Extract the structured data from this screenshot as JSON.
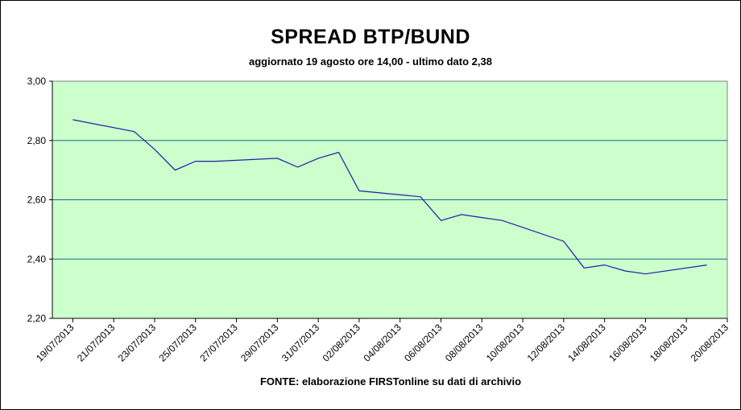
{
  "chart_data": {
    "type": "line",
    "title": "SPREAD BTP/BUND",
    "subtitle": "aggiornato 19 agosto ore 14,00 - ultimo dato 2,38",
    "source": "FONTE:  elaborazione FIRSTonline su dati di archivio",
    "xlabel": "",
    "ylabel": "",
    "ylim": [
      2.2,
      3.0
    ],
    "y_ticks": [
      "2,20",
      "2,40",
      "2,60",
      "2,80",
      "3,00"
    ],
    "x_ticks": [
      "19/07/2013",
      "21/07/2013",
      "23/07/2013",
      "25/07/2013",
      "27/07/2013",
      "29/07/2013",
      "31/07/2013",
      "02/08/2013",
      "04/08/2013",
      "06/08/2013",
      "08/08/2013",
      "10/08/2013",
      "12/08/2013",
      "14/08/2013",
      "16/08/2013",
      "18/08/2013",
      "20/08/2013"
    ],
    "grid": true,
    "legend": "none",
    "colors": {
      "plot_background": "#ccffcc",
      "line": "#1f1fa8",
      "gridline": "#1a6a8c"
    },
    "series": [
      {
        "x": [
          "2013-07-19",
          "2013-07-22",
          "2013-07-23",
          "2013-07-24",
          "2013-07-25",
          "2013-07-26",
          "2013-07-29",
          "2013-07-30",
          "2013-07-31",
          "2013-08-01",
          "2013-08-02",
          "2013-08-05",
          "2013-08-06",
          "2013-08-07",
          "2013-08-08",
          "2013-08-09",
          "2013-08-12",
          "2013-08-13",
          "2013-08-14",
          "2013-08-15",
          "2013-08-16",
          "2013-08-19"
        ],
        "values": [
          2.87,
          2.83,
          2.77,
          2.7,
          2.73,
          2.73,
          2.74,
          2.71,
          2.74,
          2.76,
          2.63,
          2.61,
          2.53,
          2.55,
          2.54,
          2.53,
          2.46,
          2.37,
          2.38,
          2.36,
          2.35,
          2.38
        ]
      }
    ]
  }
}
